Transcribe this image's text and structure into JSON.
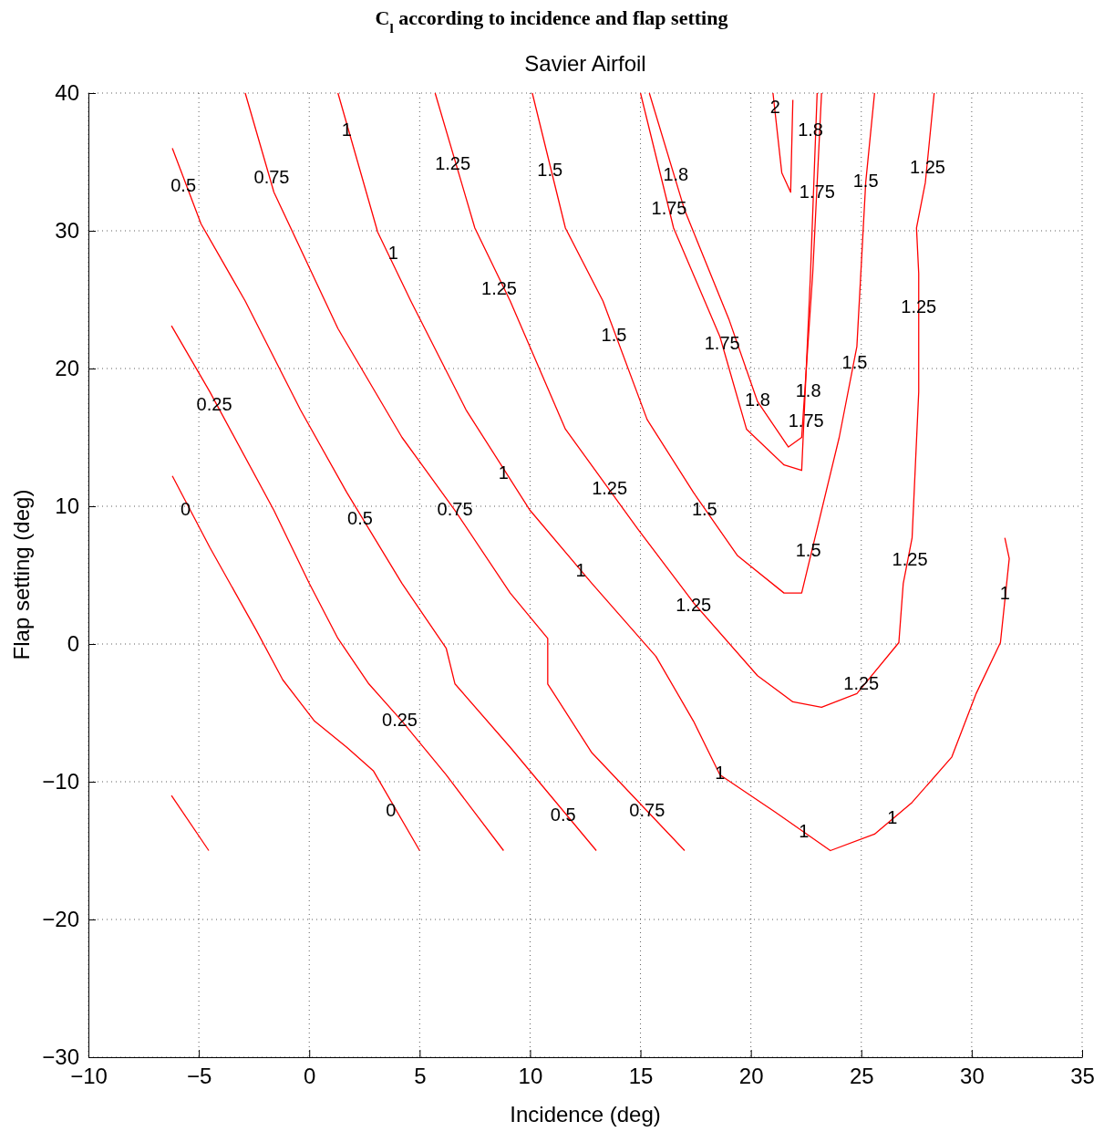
{
  "chart_data": {
    "type": "line",
    "title": "C$_{l}$ according to incidence and flap setting",
    "subtitle": "Savier Airfoil",
    "xlabel": "Incidence (deg)",
    "ylabel": "Flap setting (deg)",
    "xlim": [
      -10,
      35
    ],
    "ylim": [
      -30,
      40
    ],
    "xticks": [
      -10,
      -5,
      0,
      5,
      10,
      15,
      20,
      25,
      30,
      35
    ],
    "yticks": [
      -30,
      -20,
      -10,
      0,
      10,
      20,
      30,
      40
    ],
    "grid": true,
    "series": [
      {
        "color": "#ff0000",
        "x": [
          -6.24,
          -4.55
        ],
        "values": [
          -11,
          -15
        ]
      },
      {
        "color": "#ff0000",
        "x": [
          -6.2,
          -4.5,
          -2.4,
          -1.2,
          0.24,
          1.7,
          2.9,
          5
        ],
        "values": [
          12.2,
          7,
          1,
          -2.6,
          -5.6,
          -7.5,
          -9.2,
          -15
        ]
      },
      {
        "color": "#ff0000",
        "x": [
          -6.24,
          -4.5,
          -1.6,
          0,
          1.3,
          2.7,
          4.2,
          6.2,
          8.8
        ],
        "values": [
          23.1,
          18.3,
          9.7,
          4.4,
          0.4,
          -2.9,
          -5.6,
          -9.5,
          -15
        ]
      },
      {
        "color": "#ff0000",
        "x": [
          -6.2,
          -4.9,
          -2.9,
          -0.4,
          1.7,
          4.2,
          6.2,
          6.6,
          9.1,
          13
        ],
        "values": [
          36,
          30.5,
          24.9,
          17,
          11,
          4.4,
          -0.3,
          -2.9,
          -7.5,
          -15
        ]
      },
      {
        "color": "#ff0000",
        "x": [
          -2.9,
          -1.6,
          1.3,
          4.2,
          6.6,
          9.1,
          10.8,
          10.8,
          12.8,
          17
        ],
        "values": [
          40,
          32.8,
          22.9,
          15,
          9.7,
          3.7,
          0.4,
          -2.9,
          -7.9,
          -15
        ]
      },
      {
        "color": "#ff0000",
        "x": [
          1.3,
          3.1,
          4.6,
          7.1,
          10,
          12.8,
          15.7,
          17.4,
          18.6,
          21.1,
          23.6,
          25.6,
          27.3,
          29.1,
          30.2,
          31.3,
          31.7,
          31.5
        ],
        "values": [
          40,
          29.9,
          24.9,
          17,
          9.7,
          4.4,
          -0.9,
          -5.6,
          -9.5,
          -12.2,
          -15,
          -13.8,
          -11.5,
          -8.2,
          -3.6,
          0.1,
          6.2,
          7.7
        ]
      },
      {
        "color": "#ff0000",
        "x": [
          5.7,
          7.5,
          9.1,
          11.6,
          14.9,
          17.4,
          20.3,
          21.9,
          23.2,
          24.8,
          26.7,
          26.9,
          27.3,
          27.6,
          27.6,
          27.5,
          27.9,
          28.3
        ],
        "values": [
          40,
          30.2,
          24.9,
          15.6,
          8.3,
          3,
          -2.3,
          -4.2,
          -4.6,
          -3.6,
          0.1,
          4.4,
          7.7,
          18.3,
          26.9,
          30.2,
          33.5,
          40
        ]
      },
      {
        "color": "#ff0000",
        "x": [
          10.1,
          11.6,
          13.3,
          15.3,
          17.4,
          19.4,
          21.5,
          22.3,
          23.2,
          24,
          24.8,
          25.2,
          25.6
        ],
        "values": [
          40,
          30.2,
          24.9,
          16.3,
          11,
          6.4,
          3.7,
          3.7,
          9.7,
          15,
          21.6,
          33.5,
          40
        ]
      },
      {
        "color": "#ff0000",
        "x": [
          15,
          16.5,
          18.6,
          19.8,
          21.5,
          22.3,
          22.7,
          23
        ],
        "values": [
          40,
          30.2,
          22.3,
          15.6,
          13,
          12.6,
          26.9,
          40
        ]
      },
      {
        "color": "#ff0000",
        "x": [
          15.4,
          17,
          19,
          20.3,
          21.7,
          22.3,
          22.8,
          23.2
        ],
        "values": [
          40,
          31.5,
          23.6,
          17.6,
          14.3,
          15,
          26.9,
          40
        ]
      },
      {
        "color": "#ff0000",
        "x": [
          21,
          21.4,
          21.8,
          21.9
        ],
        "values": [
          40,
          34.2,
          32.8,
          39.5
        ]
      }
    ],
    "annotations": [
      {
        "text": "0",
        "x": -5.6,
        "y": 9.7
      },
      {
        "text": "0",
        "x": 3.7,
        "y": -12.2
      },
      {
        "text": "0.25",
        "x": -4.3,
        "y": 17.3
      },
      {
        "text": "0.25",
        "x": 4.1,
        "y": -5.6
      },
      {
        "text": "0.5",
        "x": -5.7,
        "y": 33.2
      },
      {
        "text": "0.5",
        "x": 2.3,
        "y": 9
      },
      {
        "text": "0.5",
        "x": 11.5,
        "y": -12.5
      },
      {
        "text": "0.75",
        "x": -1.7,
        "y": 33.8
      },
      {
        "text": "0.75",
        "x": 6.6,
        "y": 9.7
      },
      {
        "text": "0.75",
        "x": 15.3,
        "y": -12.2
      },
      {
        "text": "1",
        "x": 1.7,
        "y": 37.2
      },
      {
        "text": "1",
        "x": 3.8,
        "y": 28.3
      },
      {
        "text": "1",
        "x": 8.8,
        "y": 12.3
      },
      {
        "text": "1",
        "x": 12.3,
        "y": 5.2
      },
      {
        "text": "1",
        "x": 18.6,
        "y": -9.5
      },
      {
        "text": "1",
        "x": 22.4,
        "y": -13.7
      },
      {
        "text": "1",
        "x": 26.4,
        "y": -12.7
      },
      {
        "text": "1",
        "x": 31.5,
        "y": 3.6
      },
      {
        "text": "1.25",
        "x": 6.5,
        "y": 34.8
      },
      {
        "text": "1.25",
        "x": 8.6,
        "y": 25.7
      },
      {
        "text": "1.25",
        "x": 13.6,
        "y": 11.2
      },
      {
        "text": "1.25",
        "x": 17.4,
        "y": 2.7
      },
      {
        "text": "1.25",
        "x": 25,
        "y": -3
      },
      {
        "text": "1.25",
        "x": 27.2,
        "y": 6
      },
      {
        "text": "1.25",
        "x": 27.6,
        "y": 24.4
      },
      {
        "text": "1.25",
        "x": 28,
        "y": 34.5
      },
      {
        "text": "1.5",
        "x": 10.9,
        "y": 34.3
      },
      {
        "text": "1.5",
        "x": 13.8,
        "y": 22.3
      },
      {
        "text": "1.5",
        "x": 17.9,
        "y": 9.7
      },
      {
        "text": "1.5",
        "x": 22.6,
        "y": 6.7
      },
      {
        "text": "1.5",
        "x": 24.7,
        "y": 20.3
      },
      {
        "text": "1.5",
        "x": 25.2,
        "y": 33.5
      },
      {
        "text": "1.75",
        "x": 16.3,
        "y": 31.5
      },
      {
        "text": "1.75",
        "x": 18.7,
        "y": 21.7
      },
      {
        "text": "1.75",
        "x": 22.5,
        "y": 16.1
      },
      {
        "text": "1.75",
        "x": 23,
        "y": 32.7
      },
      {
        "text": "1.8",
        "x": 16.6,
        "y": 34
      },
      {
        "text": "1.8",
        "x": 20.3,
        "y": 17.6
      },
      {
        "text": "1.8",
        "x": 22.6,
        "y": 18.3
      },
      {
        "text": "1.8",
        "x": 22.7,
        "y": 37.2
      },
      {
        "text": "2",
        "x": 21.1,
        "y": 38.9
      }
    ]
  }
}
